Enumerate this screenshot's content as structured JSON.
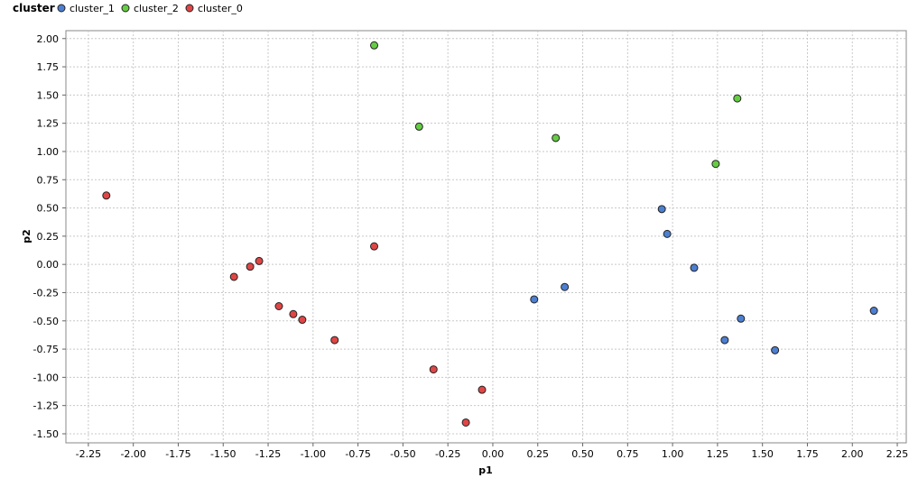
{
  "legend": {
    "title": "cluster"
  },
  "chart_data": {
    "type": "scatter",
    "xlabel": "p1",
    "ylabel": "p2",
    "xlim": [
      -2.375,
      2.3
    ],
    "ylim": [
      -1.58,
      2.07
    ],
    "grid": true,
    "legend_position": "top-left",
    "x_ticks": [
      "-2.25",
      "-2.00",
      "-1.75",
      "-1.50",
      "-1.25",
      "-1.00",
      "-0.75",
      "-0.50",
      "-0.25",
      "0.00",
      "0.25",
      "0.50",
      "0.75",
      "1.00",
      "1.25",
      "1.50",
      "1.75",
      "2.00",
      "2.25"
    ],
    "y_ticks": [
      "2.00",
      "1.75",
      "1.50",
      "1.25",
      "1.00",
      "0.75",
      "0.50",
      "0.25",
      "0.00",
      "-0.25",
      "-0.50",
      "-0.75",
      "-1.00",
      "-1.25",
      "-1.50"
    ],
    "series": [
      {
        "name": "cluster_1",
        "color": "#4d7fd1",
        "points": [
          [
            0.23,
            -0.31
          ],
          [
            0.4,
            -0.2
          ],
          [
            0.94,
            0.49
          ],
          [
            0.97,
            0.27
          ],
          [
            1.12,
            -0.03
          ],
          [
            1.29,
            -0.67
          ],
          [
            1.38,
            -0.48
          ],
          [
            1.57,
            -0.76
          ],
          [
            2.12,
            -0.41
          ]
        ]
      },
      {
        "name": "cluster_2",
        "color": "#66cc44",
        "points": [
          [
            -0.66,
            1.94
          ],
          [
            -0.41,
            1.22
          ],
          [
            0.35,
            1.12
          ],
          [
            1.24,
            0.89
          ],
          [
            1.36,
            1.47
          ]
        ]
      },
      {
        "name": "cluster_0",
        "color": "#e04646",
        "points": [
          [
            -2.15,
            0.61
          ],
          [
            -1.44,
            -0.11
          ],
          [
            -1.35,
            -0.02
          ],
          [
            -1.3,
            0.03
          ],
          [
            -1.19,
            -0.37
          ],
          [
            -1.11,
            -0.44
          ],
          [
            -1.06,
            -0.49
          ],
          [
            -0.88,
            -0.67
          ],
          [
            -0.66,
            0.16
          ],
          [
            -0.33,
            -0.93
          ],
          [
            -0.15,
            -1.4
          ],
          [
            -0.06,
            -1.11
          ]
        ]
      }
    ]
  }
}
